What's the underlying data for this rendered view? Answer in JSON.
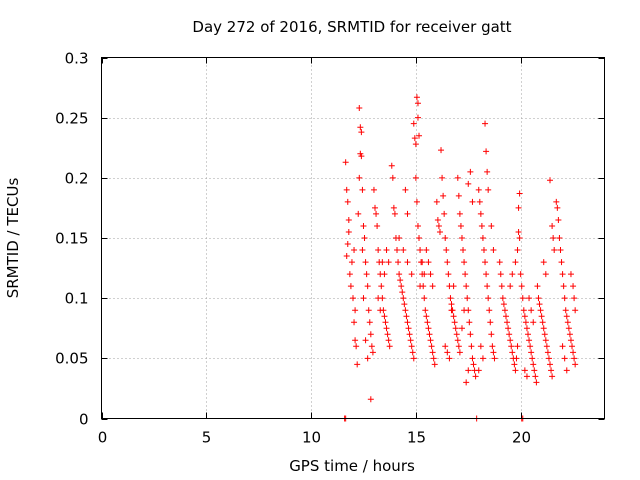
{
  "chart_data": {
    "type": "scatter",
    "title": "Day 272 of 2016, SRMTID for receiver gatt",
    "xlabel": "GPS time / hours",
    "ylabel": "SRMTID / TECUs",
    "xlim": [
      0,
      24
    ],
    "ylim": [
      0,
      0.3
    ],
    "xticks": [
      0,
      5,
      10,
      15,
      20
    ],
    "xtick_labels": [
      "0",
      "5",
      "10",
      "15",
      "20"
    ],
    "yticks": [
      0,
      0.05,
      0.1,
      0.15,
      0.2,
      0.25,
      0.3
    ],
    "ytick_labels": [
      "0",
      "0.05",
      "0.1",
      "0.15",
      "0.2",
      "0.25",
      "0.3"
    ],
    "grid": true,
    "marker": "+",
    "color": "#ff0000",
    "series": [
      {
        "name": "SRMTID",
        "points": [
          [
            11.6,
            0.0
          ],
          [
            11.65,
            0.0
          ],
          [
            17.9,
            0.0
          ],
          [
            20.05,
            0.0
          ],
          [
            20.1,
            0.0
          ],
          [
            11.65,
            0.213
          ],
          [
            11.7,
            0.19
          ],
          [
            11.75,
            0.18
          ],
          [
            11.8,
            0.165
          ],
          [
            11.7,
            0.135
          ],
          [
            11.75,
            0.145
          ],
          [
            11.8,
            0.155
          ],
          [
            11.85,
            0.12
          ],
          [
            11.9,
            0.11
          ],
          [
            11.95,
            0.13
          ],
          [
            12.0,
            0.1
          ],
          [
            12.05,
            0.08
          ],
          [
            12.1,
            0.065
          ],
          [
            12.15,
            0.06
          ],
          [
            12.2,
            0.045
          ],
          [
            12.1,
            0.09
          ],
          [
            12.05,
            0.14
          ],
          [
            12.3,
            0.258
          ],
          [
            12.35,
            0.242
          ],
          [
            12.4,
            0.238
          ],
          [
            12.35,
            0.22
          ],
          [
            12.4,
            0.218
          ],
          [
            12.45,
            0.19
          ],
          [
            12.3,
            0.2
          ],
          [
            12.25,
            0.17
          ],
          [
            12.5,
            0.16
          ],
          [
            12.55,
            0.15
          ],
          [
            12.6,
            0.13
          ],
          [
            12.65,
            0.12
          ],
          [
            12.7,
            0.11
          ],
          [
            12.75,
            0.09
          ],
          [
            12.8,
            0.08
          ],
          [
            12.85,
            0.07
          ],
          [
            12.9,
            0.06
          ],
          [
            12.95,
            0.055
          ],
          [
            12.85,
            0.016
          ],
          [
            12.7,
            0.05
          ],
          [
            12.6,
            0.065
          ],
          [
            12.5,
            0.1
          ],
          [
            12.45,
            0.14
          ],
          [
            13.0,
            0.19
          ],
          [
            13.05,
            0.175
          ],
          [
            13.1,
            0.17
          ],
          [
            13.15,
            0.16
          ],
          [
            13.2,
            0.14
          ],
          [
            13.25,
            0.13
          ],
          [
            13.3,
            0.12
          ],
          [
            13.35,
            0.11
          ],
          [
            13.4,
            0.1
          ],
          [
            13.45,
            0.09
          ],
          [
            13.5,
            0.085
          ],
          [
            13.55,
            0.08
          ],
          [
            13.6,
            0.075
          ],
          [
            13.65,
            0.07
          ],
          [
            13.7,
            0.065
          ],
          [
            13.75,
            0.06
          ],
          [
            13.2,
            0.1
          ],
          [
            13.3,
            0.09
          ],
          [
            13.4,
            0.13
          ],
          [
            13.5,
            0.12
          ],
          [
            13.6,
            0.14
          ],
          [
            13.7,
            0.13
          ],
          [
            13.85,
            0.21
          ],
          [
            13.9,
            0.2
          ],
          [
            13.95,
            0.175
          ],
          [
            14.0,
            0.17
          ],
          [
            14.05,
            0.15
          ],
          [
            14.1,
            0.14
          ],
          [
            14.15,
            0.13
          ],
          [
            14.2,
            0.12
          ],
          [
            14.25,
            0.115
          ],
          [
            14.3,
            0.11
          ],
          [
            14.35,
            0.105
          ],
          [
            14.4,
            0.1
          ],
          [
            14.45,
            0.095
          ],
          [
            14.5,
            0.09
          ],
          [
            14.55,
            0.085
          ],
          [
            14.6,
            0.08
          ],
          [
            14.65,
            0.075
          ],
          [
            14.7,
            0.07
          ],
          [
            14.75,
            0.065
          ],
          [
            14.8,
            0.06
          ],
          [
            14.85,
            0.055
          ],
          [
            14.9,
            0.05
          ],
          [
            14.2,
            0.15
          ],
          [
            14.4,
            0.14
          ],
          [
            14.6,
            0.13
          ],
          [
            14.8,
            0.12
          ],
          [
            14.5,
            0.19
          ],
          [
            14.6,
            0.17
          ],
          [
            14.9,
            0.245
          ],
          [
            14.95,
            0.233
          ],
          [
            15.0,
            0.228
          ],
          [
            15.05,
            0.267
          ],
          [
            15.1,
            0.262
          ],
          [
            15.1,
            0.25
          ],
          [
            15.15,
            0.235
          ],
          [
            15.0,
            0.2
          ],
          [
            15.05,
            0.18
          ],
          [
            15.1,
            0.16
          ],
          [
            15.15,
            0.15
          ],
          [
            15.2,
            0.14
          ],
          [
            15.25,
            0.13
          ],
          [
            15.3,
            0.12
          ],
          [
            15.35,
            0.11
          ],
          [
            15.4,
            0.1
          ],
          [
            15.45,
            0.09
          ],
          [
            15.5,
            0.085
          ],
          [
            15.55,
            0.08
          ],
          [
            15.6,
            0.075
          ],
          [
            15.65,
            0.07
          ],
          [
            15.7,
            0.065
          ],
          [
            15.75,
            0.06
          ],
          [
            15.8,
            0.055
          ],
          [
            15.85,
            0.05
          ],
          [
            15.9,
            0.045
          ],
          [
            15.2,
            0.11
          ],
          [
            15.3,
            0.13
          ],
          [
            15.4,
            0.12
          ],
          [
            15.5,
            0.14
          ],
          [
            15.6,
            0.13
          ],
          [
            15.7,
            0.12
          ],
          [
            15.8,
            0.11
          ],
          [
            16.0,
            0.18
          ],
          [
            16.05,
            0.165
          ],
          [
            16.1,
            0.16
          ],
          [
            16.15,
            0.155
          ],
          [
            16.2,
            0.223
          ],
          [
            16.25,
            0.2
          ],
          [
            16.3,
            0.185
          ],
          [
            16.35,
            0.17
          ],
          [
            16.4,
            0.15
          ],
          [
            16.45,
            0.14
          ],
          [
            16.5,
            0.13
          ],
          [
            16.55,
            0.12
          ],
          [
            16.6,
            0.11
          ],
          [
            16.65,
            0.1
          ],
          [
            16.7,
            0.095
          ],
          [
            16.75,
            0.09
          ],
          [
            16.8,
            0.085
          ],
          [
            16.85,
            0.08
          ],
          [
            16.9,
            0.075
          ],
          [
            16.95,
            0.07
          ],
          [
            17.0,
            0.065
          ],
          [
            17.05,
            0.06
          ],
          [
            17.1,
            0.055
          ],
          [
            16.4,
            0.06
          ],
          [
            16.5,
            0.055
          ],
          [
            16.6,
            0.05
          ],
          [
            16.7,
            0.09
          ],
          [
            16.8,
            0.11
          ],
          [
            17.0,
            0.2
          ],
          [
            17.05,
            0.185
          ],
          [
            17.1,
            0.17
          ],
          [
            17.15,
            0.16
          ],
          [
            17.2,
            0.15
          ],
          [
            17.25,
            0.14
          ],
          [
            17.3,
            0.13
          ],
          [
            17.35,
            0.12
          ],
          [
            17.4,
            0.11
          ],
          [
            17.45,
            0.1
          ],
          [
            17.5,
            0.09
          ],
          [
            17.55,
            0.08
          ],
          [
            17.6,
            0.07
          ],
          [
            17.65,
            0.06
          ],
          [
            17.7,
            0.05
          ],
          [
            17.75,
            0.045
          ],
          [
            17.8,
            0.04
          ],
          [
            17.85,
            0.035
          ],
          [
            17.4,
            0.03
          ],
          [
            17.5,
            0.04
          ],
          [
            17.3,
            0.09
          ],
          [
            17.2,
            0.075
          ],
          [
            17.6,
            0.205
          ],
          [
            17.5,
            0.195
          ],
          [
            17.7,
            0.18
          ],
          [
            18.0,
            0.19
          ],
          [
            18.05,
            0.18
          ],
          [
            18.1,
            0.17
          ],
          [
            18.15,
            0.16
          ],
          [
            18.2,
            0.15
          ],
          [
            18.25,
            0.14
          ],
          [
            18.3,
            0.13
          ],
          [
            18.35,
            0.12
          ],
          [
            18.4,
            0.11
          ],
          [
            18.45,
            0.1
          ],
          [
            18.5,
            0.09
          ],
          [
            18.55,
            0.08
          ],
          [
            18.6,
            0.07
          ],
          [
            18.65,
            0.06
          ],
          [
            18.7,
            0.055
          ],
          [
            18.75,
            0.05
          ],
          [
            18.3,
            0.245
          ],
          [
            18.35,
            0.222
          ],
          [
            18.4,
            0.205
          ],
          [
            18.45,
            0.19
          ],
          [
            18.1,
            0.06
          ],
          [
            18.2,
            0.05
          ],
          [
            18.0,
            0.04
          ],
          [
            18.6,
            0.16
          ],
          [
            18.7,
            0.14
          ],
          [
            19.0,
            0.13
          ],
          [
            19.05,
            0.12
          ],
          [
            19.1,
            0.11
          ],
          [
            19.15,
            0.1
          ],
          [
            19.2,
            0.095
          ],
          [
            19.25,
            0.09
          ],
          [
            19.3,
            0.085
          ],
          [
            19.35,
            0.08
          ],
          [
            19.4,
            0.075
          ],
          [
            19.45,
            0.07
          ],
          [
            19.5,
            0.065
          ],
          [
            19.55,
            0.06
          ],
          [
            19.6,
            0.055
          ],
          [
            19.65,
            0.05
          ],
          [
            19.7,
            0.045
          ],
          [
            19.75,
            0.04
          ],
          [
            19.8,
            0.05
          ],
          [
            19.85,
            0.06
          ],
          [
            19.9,
            0.155
          ],
          [
            19.95,
            0.15
          ],
          [
            19.85,
            0.14
          ],
          [
            19.75,
            0.13
          ],
          [
            19.6,
            0.12
          ],
          [
            19.5,
            0.11
          ],
          [
            19.95,
            0.187
          ],
          [
            19.9,
            0.175
          ],
          [
            20.0,
            0.12
          ],
          [
            20.05,
            0.11
          ],
          [
            20.1,
            0.1
          ],
          [
            20.15,
            0.09
          ],
          [
            20.2,
            0.085
          ],
          [
            20.25,
            0.08
          ],
          [
            20.3,
            0.075
          ],
          [
            20.35,
            0.07
          ],
          [
            20.4,
            0.065
          ],
          [
            20.45,
            0.06
          ],
          [
            20.5,
            0.055
          ],
          [
            20.55,
            0.05
          ],
          [
            20.6,
            0.045
          ],
          [
            20.65,
            0.04
          ],
          [
            20.7,
            0.035
          ],
          [
            20.75,
            0.03
          ],
          [
            20.4,
            0.1
          ],
          [
            20.5,
            0.09
          ],
          [
            20.6,
            0.08
          ],
          [
            20.3,
            0.035
          ],
          [
            20.2,
            0.04
          ],
          [
            20.8,
            0.11
          ],
          [
            20.85,
            0.1
          ],
          [
            20.9,
            0.095
          ],
          [
            20.95,
            0.09
          ],
          [
            21.0,
            0.085
          ],
          [
            21.05,
            0.08
          ],
          [
            21.1,
            0.075
          ],
          [
            21.15,
            0.07
          ],
          [
            21.2,
            0.065
          ],
          [
            21.25,
            0.06
          ],
          [
            21.3,
            0.055
          ],
          [
            21.35,
            0.05
          ],
          [
            21.4,
            0.045
          ],
          [
            21.45,
            0.04
          ],
          [
            21.5,
            0.035
          ],
          [
            21.4,
            0.198
          ],
          [
            21.5,
            0.16
          ],
          [
            21.55,
            0.15
          ],
          [
            21.6,
            0.14
          ],
          [
            21.1,
            0.13
          ],
          [
            21.2,
            0.12
          ],
          [
            21.7,
            0.18
          ],
          [
            21.75,
            0.175
          ],
          [
            21.8,
            0.165
          ],
          [
            21.85,
            0.15
          ],
          [
            21.9,
            0.14
          ],
          [
            21.95,
            0.13
          ],
          [
            22.0,
            0.12
          ],
          [
            22.05,
            0.11
          ],
          [
            22.1,
            0.1
          ],
          [
            22.15,
            0.09
          ],
          [
            22.2,
            0.085
          ],
          [
            22.25,
            0.08
          ],
          [
            22.3,
            0.075
          ],
          [
            22.35,
            0.07
          ],
          [
            22.4,
            0.065
          ],
          [
            22.45,
            0.06
          ],
          [
            22.5,
            0.055
          ],
          [
            22.55,
            0.05
          ],
          [
            22.6,
            0.045
          ],
          [
            22.0,
            0.06
          ],
          [
            22.1,
            0.05
          ],
          [
            22.2,
            0.04
          ],
          [
            22.4,
            0.12
          ],
          [
            22.5,
            0.11
          ],
          [
            22.55,
            0.1
          ],
          [
            22.6,
            0.09
          ]
        ]
      }
    ]
  }
}
